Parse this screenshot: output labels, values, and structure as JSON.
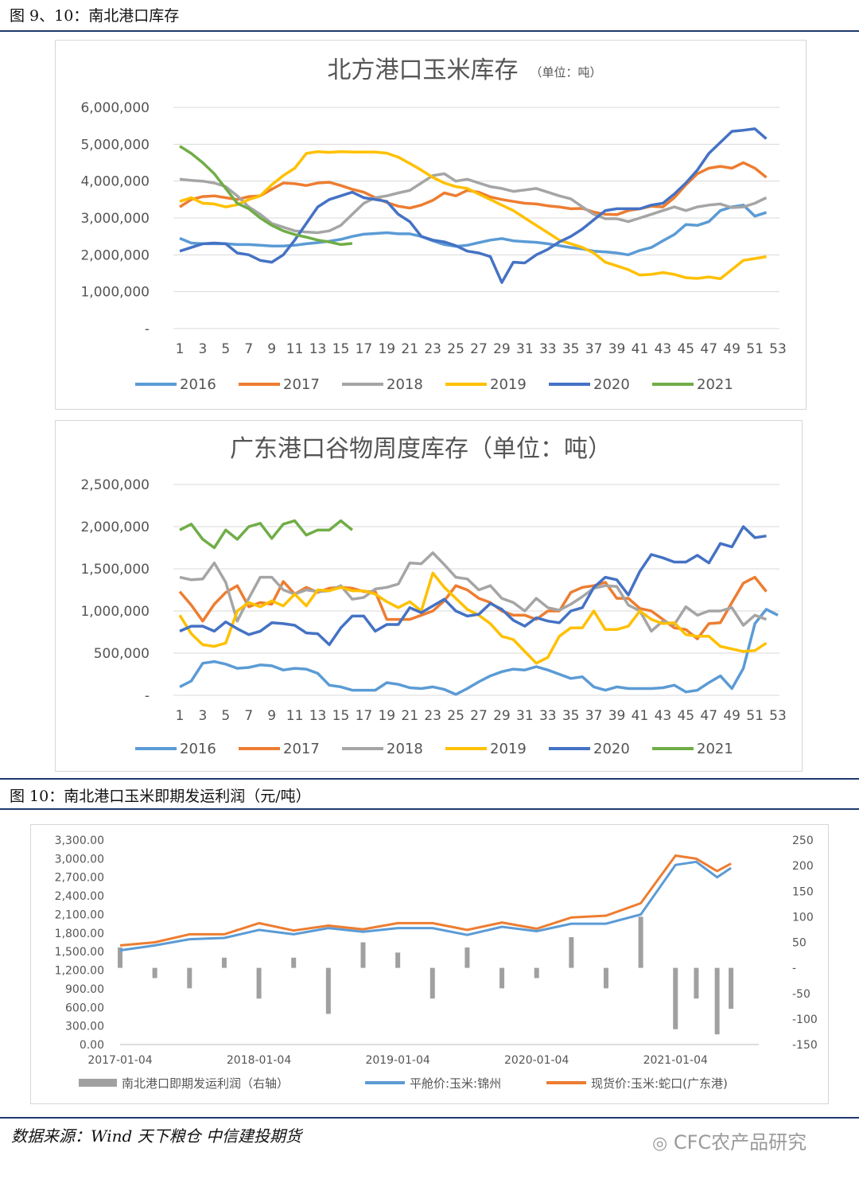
{
  "header": {
    "fig_title_top": "图 9、10：南北港口库存",
    "fig_title_bottom": "图 10：南北港口玉米即期发运利润（元/吨）"
  },
  "footer": {
    "source": "数据来源：Wind 天下粮仓 中信建投期货",
    "brand": "CFC农产品研究",
    "brand_icon": "wechat-icon"
  },
  "colors": {
    "2016": "#5b9bd5",
    "2017": "#ed7d31",
    "2018": "#a5a5a5",
    "2019": "#ffc000",
    "2020": "#4472c4",
    "2021": "#70ad47",
    "profit": "#a0a0a0",
    "jinzhou": "#5b9bd5",
    "shekou": "#ed7d31"
  },
  "chart_data": [
    {
      "type": "line",
      "title": "北方港口玉米库存",
      "unit": "（单位：吨）",
      "ylim": [
        0,
        6000000
      ],
      "yticks": [
        "6,000,000",
        "5,000,000",
        "4,000,000",
        "3,000,000",
        "2,000,000",
        "1,000,000",
        "-"
      ],
      "xticks": [
        "1",
        "3",
        "5",
        "7",
        "9",
        "11",
        "13",
        "15",
        "17",
        "19",
        "21",
        "23",
        "25",
        "27",
        "29",
        "31",
        "33",
        "35",
        "37",
        "39",
        "41",
        "43",
        "45",
        "47",
        "49",
        "51",
        "53"
      ],
      "legend_position": "bottom",
      "series": [
        {
          "name": "2016",
          "values": [
            2450000,
            2320000,
            2300000,
            2300000,
            2300000,
            2280000,
            2280000,
            2260000,
            2240000,
            2240000,
            2260000,
            2300000,
            2330000,
            2370000,
            2420000,
            2500000,
            2560000,
            2580000,
            2600000,
            2570000,
            2570000,
            2500000,
            2380000,
            2280000,
            2230000,
            2260000,
            2330000,
            2400000,
            2440000,
            2380000,
            2360000,
            2340000,
            2300000,
            2250000,
            2200000,
            2160000,
            2100000,
            2080000,
            2050000,
            2000000,
            2120000,
            2200000,
            2380000,
            2550000,
            2820000,
            2800000,
            2900000,
            3200000,
            3300000,
            3350000,
            3050000,
            3150000
          ]
        },
        {
          "name": "2017",
          "values": [
            3300000,
            3500000,
            3580000,
            3600000,
            3550000,
            3500000,
            3580000,
            3600000,
            3780000,
            3950000,
            3930000,
            3880000,
            3950000,
            3970000,
            3880000,
            3780000,
            3700000,
            3550000,
            3420000,
            3320000,
            3270000,
            3350000,
            3480000,
            3680000,
            3600000,
            3750000,
            3700000,
            3570000,
            3500000,
            3450000,
            3400000,
            3380000,
            3330000,
            3300000,
            3250000,
            3260000,
            3160000,
            3100000,
            3090000,
            3200000,
            3250000,
            3320000,
            3300000,
            3550000,
            3900000,
            4200000,
            4350000,
            4400000,
            4350000,
            4500000,
            4350000,
            4100000
          ]
        },
        {
          "name": "2018",
          "values": [
            4050000,
            4020000,
            4000000,
            3950000,
            3850000,
            3600000,
            3300000,
            3100000,
            2850000,
            2750000,
            2650000,
            2620000,
            2600000,
            2650000,
            2800000,
            3100000,
            3400000,
            3550000,
            3600000,
            3680000,
            3750000,
            3950000,
            4150000,
            4200000,
            4000000,
            4050000,
            3950000,
            3850000,
            3800000,
            3720000,
            3760000,
            3800000,
            3700000,
            3600000,
            3520000,
            3300000,
            3100000,
            2980000,
            2980000,
            2900000,
            3000000,
            3100000,
            3200000,
            3300000,
            3200000,
            3300000,
            3350000,
            3380000,
            3280000,
            3300000,
            3400000,
            3550000
          ]
        },
        {
          "name": "2019",
          "values": [
            3450000,
            3550000,
            3400000,
            3380000,
            3300000,
            3360000,
            3500000,
            3600000,
            3900000,
            4150000,
            4350000,
            4750000,
            4800000,
            4780000,
            4800000,
            4790000,
            4790000,
            4790000,
            4760000,
            4650000,
            4480000,
            4300000,
            4100000,
            3950000,
            3850000,
            3800000,
            3650000,
            3500000,
            3350000,
            3200000,
            3000000,
            2800000,
            2600000,
            2400000,
            2300000,
            2200000,
            2050000,
            1800000,
            1700000,
            1600000,
            1450000,
            1470000,
            1520000,
            1470000,
            1380000,
            1360000,
            1400000,
            1350000,
            1600000,
            1850000,
            1900000,
            1950000
          ]
        },
        {
          "name": "2020",
          "values": [
            2100000,
            2200000,
            2300000,
            2320000,
            2300000,
            2050000,
            2000000,
            1850000,
            1800000,
            2000000,
            2400000,
            2850000,
            3300000,
            3500000,
            3600000,
            3700000,
            3550000,
            3500000,
            3450000,
            3100000,
            2900000,
            2500000,
            2400000,
            2350000,
            2250000,
            2100000,
            2050000,
            1950000,
            1250000,
            1800000,
            1780000,
            2000000,
            2150000,
            2350000,
            2500000,
            2700000,
            2950000,
            3200000,
            3250000,
            3250000,
            3250000,
            3350000,
            3400000,
            3650000,
            3950000,
            4300000,
            4750000,
            5050000,
            5350000,
            5380000,
            5420000,
            5150000
          ]
        },
        {
          "name": "2021",
          "values": [
            4950000,
            4750000,
            4500000,
            4200000,
            3800000,
            3400000,
            3250000,
            3000000,
            2800000,
            2650000,
            2550000,
            2480000,
            2400000,
            2350000,
            2280000,
            2310000
          ]
        }
      ]
    },
    {
      "type": "line",
      "title": "广东港口谷物周度库存（单位：吨）",
      "ylim": [
        0,
        2500000
      ],
      "yticks": [
        "2,500,000",
        "2,000,000",
        "1,500,000",
        "1,000,000",
        "500,000",
        "-"
      ],
      "xticks": [
        "1",
        "3",
        "5",
        "7",
        "9",
        "11",
        "13",
        "15",
        "17",
        "19",
        "21",
        "23",
        "25",
        "27",
        "29",
        "31",
        "33",
        "35",
        "37",
        "39",
        "41",
        "43",
        "45",
        "47",
        "49",
        "51",
        "53"
      ],
      "legend_position": "bottom",
      "series": [
        {
          "name": "2016",
          "values": [
            100000,
            170000,
            380000,
            400000,
            370000,
            320000,
            330000,
            360000,
            350000,
            300000,
            320000,
            310000,
            260000,
            120000,
            100000,
            60000,
            60000,
            60000,
            150000,
            130000,
            90000,
            80000,
            100000,
            70000,
            10000,
            80000,
            160000,
            230000,
            280000,
            310000,
            300000,
            340000,
            300000,
            250000,
            200000,
            220000,
            100000,
            60000,
            100000,
            80000,
            80000,
            80000,
            90000,
            120000,
            40000,
            60000,
            150000,
            230000,
            80000,
            320000,
            850000,
            1020000,
            950000
          ]
        },
        {
          "name": "2017",
          "values": [
            1230000,
            1070000,
            880000,
            1080000,
            1220000,
            1300000,
            1050000,
            1100000,
            1080000,
            1350000,
            1200000,
            1280000,
            1220000,
            1270000,
            1280000,
            1270000,
            1230000,
            1230000,
            900000,
            900000,
            900000,
            950000,
            1000000,
            1120000,
            1300000,
            1250000,
            1150000,
            1100000,
            1000000,
            950000,
            950000,
            900000,
            1000000,
            1000000,
            1220000,
            1280000,
            1300000,
            1340000,
            1150000,
            1150000,
            1030000,
            1000000,
            900000,
            800000,
            780000,
            670000,
            850000,
            860000,
            1100000,
            1330000,
            1400000,
            1230000
          ]
        },
        {
          "name": "2018",
          "values": [
            1400000,
            1370000,
            1380000,
            1570000,
            1340000,
            880000,
            1150000,
            1400000,
            1400000,
            1250000,
            1200000,
            1250000,
            1230000,
            1240000,
            1300000,
            1140000,
            1160000,
            1260000,
            1280000,
            1320000,
            1570000,
            1560000,
            1690000,
            1550000,
            1400000,
            1380000,
            1250000,
            1300000,
            1150000,
            1100000,
            1000000,
            1150000,
            1040000,
            1010000,
            1080000,
            1170000,
            1270000,
            1300000,
            1290000,
            1070000,
            1000000,
            760000,
            880000,
            840000,
            1050000,
            950000,
            1000000,
            1000000,
            1040000,
            830000,
            950000,
            900000
          ]
        },
        {
          "name": "2019",
          "values": [
            950000,
            730000,
            600000,
            580000,
            620000,
            1000000,
            1100000,
            1050000,
            1120000,
            1060000,
            1200000,
            1060000,
            1250000,
            1240000,
            1280000,
            1240000,
            1240000,
            1200000,
            1110000,
            1040000,
            1110000,
            1000000,
            1450000,
            1280000,
            1150000,
            1020000,
            950000,
            850000,
            700000,
            660000,
            520000,
            380000,
            450000,
            700000,
            800000,
            800000,
            1000000,
            780000,
            780000,
            820000,
            1000000,
            900000,
            850000,
            860000,
            720000,
            700000,
            700000,
            580000,
            550000,
            520000,
            530000,
            620000
          ]
        },
        {
          "name": "2020",
          "values": [
            760000,
            820000,
            820000,
            760000,
            870000,
            790000,
            720000,
            760000,
            860000,
            850000,
            830000,
            740000,
            730000,
            600000,
            800000,
            940000,
            940000,
            760000,
            840000,
            840000,
            1040000,
            980000,
            1060000,
            1140000,
            1000000,
            940000,
            960000,
            1090000,
            1020000,
            890000,
            820000,
            920000,
            880000,
            860000,
            1000000,
            1040000,
            1280000,
            1400000,
            1370000,
            1190000,
            1470000,
            1670000,
            1630000,
            1580000,
            1580000,
            1660000,
            1570000,
            1800000,
            1760000,
            2000000,
            1870000,
            1890000
          ]
        },
        {
          "name": "2021",
          "values": [
            1960000,
            2030000,
            1850000,
            1750000,
            1960000,
            1850000,
            2000000,
            2040000,
            1860000,
            2030000,
            2070000,
            1900000,
            1960000,
            1960000,
            2070000,
            1960000
          ]
        }
      ]
    },
    {
      "type": "line",
      "title": "",
      "ylabel": "",
      "ylim": [
        0,
        3300
      ],
      "yticks": [
        "3,300.00",
        "3,000.00",
        "2,700.00",
        "2,400.00",
        "2,100.00",
        "1,800.00",
        "1,500.00",
        "1,200.00",
        "900.00",
        "600.00",
        "300.00",
        "0.00"
      ],
      "y2ticks": [
        "250",
        "200",
        "150",
        "100",
        "50",
        "-",
        "-50",
        "-100",
        "-150"
      ],
      "y2lim": [
        -150,
        250
      ],
      "xticks": [
        "2017-01-04",
        "2018-01-04",
        "2019-01-04",
        "2020-01-04",
        "2021-01-04"
      ],
      "legend_position": "bottom",
      "series": [
        {
          "name": "南北港口即期发运利润（右轴）",
          "axis": "right",
          "kind": "bar"
        },
        {
          "name": "平舱价:玉米:锦州",
          "axis": "left"
        },
        {
          "name": "现货价:玉米:蛇口(广东港)",
          "axis": "left"
        }
      ],
      "x_years": [
        2017.0,
        2017.25,
        2017.5,
        2017.75,
        2018.0,
        2018.25,
        2018.5,
        2018.75,
        2019.0,
        2019.25,
        2019.5,
        2019.75,
        2020.0,
        2020.25,
        2020.5,
        2020.75,
        2021.0,
        2021.15,
        2021.3,
        2021.4
      ],
      "jinzhou": [
        1520,
        1600,
        1700,
        1720,
        1850,
        1780,
        1880,
        1820,
        1880,
        1880,
        1770,
        1900,
        1830,
        1950,
        1950,
        2100,
        2900,
        2950,
        2700,
        2850
      ],
      "shekou": [
        1600,
        1650,
        1780,
        1780,
        1960,
        1840,
        1920,
        1860,
        1960,
        1960,
        1850,
        1970,
        1870,
        2050,
        2080,
        2280,
        3050,
        3000,
        2800,
        2920
      ],
      "profit_bars": [
        40,
        -20,
        -40,
        20,
        -60,
        20,
        -90,
        50,
        30,
        -60,
        40,
        -40,
        -20,
        60,
        -40,
        100,
        -120,
        -60,
        -130,
        -80
      ]
    }
  ]
}
